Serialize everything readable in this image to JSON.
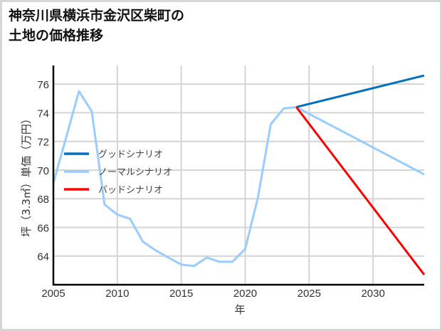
{
  "title_line1": "神奈川県横浜市金沢区柴町の",
  "title_line2": "土地の価格推移",
  "chart_data": {
    "type": "line",
    "title": "神奈川県横浜市金沢区柴町の土地の価格推移",
    "xlabel": "年",
    "ylabel": "坪（3.3㎡）単価（万円）",
    "xlim": [
      2005,
      2034
    ],
    "ylim": [
      62,
      77.3
    ],
    "x_ticks": [
      2005,
      2010,
      2015,
      2020,
      2025,
      2030
    ],
    "y_ticks": [
      64,
      66,
      68,
      70,
      72,
      74,
      76
    ],
    "grid": true,
    "legend_position": "center-left",
    "series": [
      {
        "name": "ノーマルシナリオ",
        "color": "#99ccff",
        "x": [
          2005,
          2006,
          2007,
          2008,
          2009,
          2010,
          2011,
          2012,
          2013,
          2014,
          2015,
          2016,
          2017,
          2018,
          2019,
          2020,
          2021,
          2022,
          2023,
          2024,
          2034
        ],
        "values": [
          69.1,
          72.3,
          75.5,
          74.1,
          67.6,
          66.9,
          66.6,
          65.0,
          64.4,
          63.9,
          63.4,
          63.3,
          63.9,
          63.6,
          63.6,
          64.5,
          68.1,
          73.2,
          74.3,
          74.4,
          69.7
        ]
      },
      {
        "name": "グッドシナリオ",
        "color": "#0070c0",
        "x": [
          2024,
          2034
        ],
        "values": [
          74.4,
          76.6
        ]
      },
      {
        "name": "バッドシナリオ",
        "color": "#ff0000",
        "x": [
          2024,
          2034
        ],
        "values": [
          74.4,
          62.7
        ]
      }
    ]
  },
  "legend": [
    {
      "label": "グッドシナリオ",
      "color": "#0070c0"
    },
    {
      "label": "ノーマルシナリオ",
      "color": "#99ccff"
    },
    {
      "label": "バッドシナリオ",
      "color": "#ff0000"
    }
  ]
}
